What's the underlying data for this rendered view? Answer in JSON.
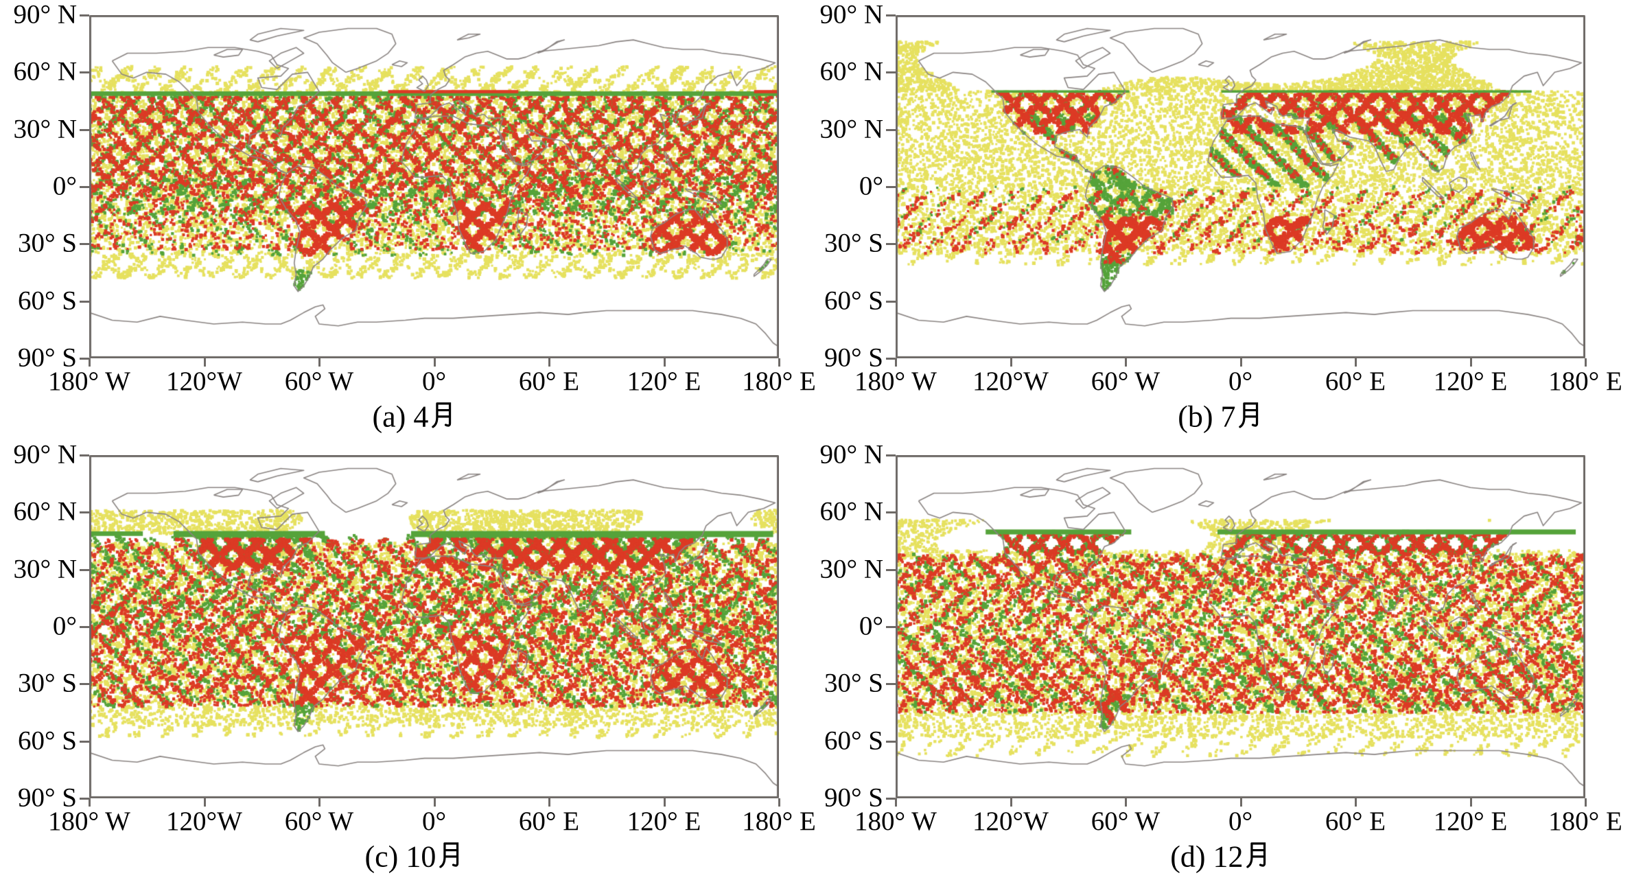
{
  "figure": {
    "background": "#ffffff",
    "palette": {
      "yellow": "#e6e15f",
      "green": "#55a33a",
      "red": "#dc3a25",
      "coastline": "#8a8482",
      "frame": "#6e6a67",
      "text": "#000000"
    }
  },
  "chart_data": [
    {
      "id": "a",
      "type": "scatter",
      "caption": "(a) 4月",
      "x_ticks": [
        "180° W",
        "120°W",
        "60° W",
        "0°",
        "60° E",
        "120° E",
        "180° E"
      ],
      "y_ticks": [
        "90° N",
        "60° N",
        "30° N",
        "0°",
        "30° S",
        "60° S",
        "90° S"
      ],
      "xlim": [
        -180,
        180
      ],
      "ylim": [
        -90,
        90
      ],
      "grid": false,
      "legend": "none",
      "series": [
        {
          "name": "yellow",
          "color": "#e6e15f",
          "bands": [
            {
              "lat": [
                50,
                63
              ],
              "style": "diag",
              "dir": 1,
              "d": 0.3
            },
            {
              "lat": [
                50,
                61
              ],
              "style": "diag",
              "dir": -1,
              "d": 0.12
            },
            {
              "lat": [
                -33,
                50
              ],
              "style": "speckle",
              "d": 0.5
            },
            {
              "lat": [
                -48,
                -33
              ],
              "style": "diag",
              "dir": 1,
              "d": 0.26
            },
            {
              "lat": [
                -48,
                -33
              ],
              "style": "diag",
              "dir": -1,
              "d": 0.14
            }
          ]
        },
        {
          "name": "green",
          "color": "#55a33a",
          "bands": [
            {
              "lat": [
                30,
                47.5
              ],
              "style": "cross",
              "d": 0.5
            },
            {
              "lat": [
                5,
                30
              ],
              "style": "cross",
              "d": 0.35
            },
            {
              "lat": [
                -15,
                5
              ],
              "style": "diag",
              "dir": 1,
              "d": 0.25
            },
            {
              "lat": [
                -15,
                5
              ],
              "style": "diag",
              "dir": -1,
              "d": 0.15
            },
            {
              "lat": [
                -36,
                -15
              ],
              "style": "diag",
              "dir": -1,
              "d": 0.12
            },
            {
              "lat": [
                -54,
                -44
              ],
              "lon": [
                -76,
                -60
              ],
              "style": "speckle",
              "d": 0.55,
              "mask": "land"
            },
            {
              "lat": [
                -47,
                -39
              ],
              "lon": [
                166,
                179
              ],
              "style": "speckle",
              "d": 0.4,
              "mask": "land"
            }
          ]
        },
        {
          "name": "red",
          "color": "#dc3a25",
          "bands": [
            {
              "lat": [
                25,
                47.5
              ],
              "style": "cross",
              "d": 0.48
            },
            {
              "lat": [
                -5,
                25
              ],
              "style": "cross",
              "d": 0.5
            },
            {
              "lat": [
                -33,
                -5
              ],
              "style": "cross",
              "d": 0.22
            },
            {
              "lat": [
                -36,
                -8
              ],
              "style": "cross",
              "d": 0.42,
              "mask": "land"
            }
          ]
        }
      ],
      "edge_bands": [
        {
          "color": "green",
          "lat": [
            47.6,
            50
          ],
          "lon": [
            -180,
            180
          ]
        },
        {
          "color": "red",
          "lat": [
            49,
            50.7
          ],
          "lon": [
            -24,
            44
          ]
        },
        {
          "color": "red",
          "lat": [
            49,
            50.7
          ],
          "lon": [
            167,
            180
          ]
        }
      ]
    },
    {
      "id": "b",
      "type": "scatter",
      "caption": "(b) 7月",
      "x_ticks": [
        "180° W",
        "120°W",
        "60° W",
        "0°",
        "60° E",
        "120° E",
        "180° E"
      ],
      "y_ticks": [
        "90° N",
        "60° N",
        "30° N",
        "0°",
        "30° S",
        "60° S",
        "90° S"
      ],
      "xlim": [
        -180,
        180
      ],
      "ylim": [
        -90,
        90
      ],
      "grid": false,
      "legend": "none",
      "series": [
        {
          "name": "yellow",
          "color": "#e6e15f",
          "bands": [
            {
              "lat": [
                50,
                76
              ],
              "style": "patch",
              "d": 0.5
            },
            {
              "lat": [
                -35,
                50
              ],
              "style": "speckle",
              "d": 0.52
            },
            {
              "lat": [
                -41,
                -35
              ],
              "style": "diag",
              "dir": 1,
              "d": 0.18
            }
          ]
        },
        {
          "name": "green",
          "color": "#55a33a",
          "bands": [
            {
              "lat": [
                38,
                50
              ],
              "lon": [
                -135,
                155
              ],
              "style": "cross",
              "d": 0.22,
              "mask": "land"
            },
            {
              "lat": [
                0,
                38
              ],
              "style": "diag",
              "dir": -1,
              "d": 0.2,
              "mask": "land"
            },
            {
              "lat": [
                -18,
                8
              ],
              "lon": [
                -82,
                -35
              ],
              "style": "cross",
              "d": 0.4,
              "mask": "land"
            },
            {
              "lat": [
                -12,
                6
              ],
              "lon": [
                95,
                155
              ],
              "style": "diag",
              "dir": -1,
              "d": 0.3,
              "mask": "land"
            },
            {
              "lat": [
                -56,
                -34
              ],
              "lon": [
                -78,
                -56
              ],
              "style": "speckle",
              "d": 0.6,
              "mask": "land"
            },
            {
              "lat": [
                -30,
                0
              ],
              "style": "diag",
              "dir": 1,
              "d": 0.06
            },
            {
              "lat": [
                -47,
                -39
              ],
              "lon": [
                166,
                179
              ],
              "style": "speckle",
              "d": 0.45,
              "mask": "land"
            }
          ]
        },
        {
          "name": "red",
          "color": "#dc3a25",
          "bands": [
            {
              "lat": [
                40,
                50
              ],
              "lon": [
                -135,
                155
              ],
              "style": "cross",
              "d": 0.6,
              "mask": "land"
            },
            {
              "lat": [
                28,
                40
              ],
              "style": "cross",
              "d": 0.35,
              "mask": "land"
            },
            {
              "lat": [
                5,
                28
              ],
              "style": "diag",
              "dir": -1,
              "d": 0.05,
              "mask": "land"
            },
            {
              "lat": [
                -33,
                -16
              ],
              "style": "cross",
              "d": 0.55,
              "mask": "land"
            },
            {
              "lat": [
                -40,
                -16
              ],
              "lon": [
                -76,
                -46
              ],
              "style": "cross",
              "d": 0.4,
              "mask": "land"
            },
            {
              "lat": [
                -35,
                -2
              ],
              "style": "diag",
              "dir": 1,
              "d": 0.14
            },
            {
              "lat": [
                -33,
                -18
              ],
              "style": "diag",
              "dir": -1,
              "d": 0.05
            }
          ]
        }
      ],
      "edge_bands": [
        {
          "color": "green",
          "lat": [
            49.3,
            50.6
          ],
          "lon": [
            -130,
            -58
          ]
        },
        {
          "color": "green",
          "lat": [
            49.3,
            50.6
          ],
          "lon": [
            -10,
            152
          ]
        }
      ]
    },
    {
      "id": "c",
      "type": "scatter",
      "caption": "(c) 10月",
      "x_ticks": [
        "180° W",
        "120°W",
        "60° W",
        "0°",
        "60° E",
        "120° E",
        "180° E"
      ],
      "y_ticks": [
        "90° N",
        "60° N",
        "30° N",
        "0°",
        "30° S",
        "60° S",
        "90° S"
      ],
      "xlim": [
        -180,
        180
      ],
      "ylim": [
        -90,
        90
      ],
      "grid": false,
      "legend": "none",
      "series": [
        {
          "name": "yellow",
          "color": "#e6e15f",
          "bands": [
            {
              "lat": [
                44,
                61
              ],
              "style": "patch",
              "d": 0.38
            },
            {
              "lat": [
                -52,
                44
              ],
              "style": "speckle",
              "d": 0.5
            },
            {
              "lat": [
                -58,
                -52
              ],
              "style": "diag",
              "dir": 1,
              "d": 0.2
            }
          ]
        },
        {
          "name": "green",
          "color": "#55a33a",
          "bands": [
            {
              "lat": [
                36,
                48
              ],
              "style": "cross",
              "d": 0.5,
              "mask": "land"
            },
            {
              "lat": [
                26,
                48
              ],
              "style": "diag",
              "dir": -1,
              "d": 0.26
            },
            {
              "lat": [
                -6,
                26
              ],
              "style": "diag",
              "dir": 1,
              "d": 0.26
            },
            {
              "lat": [
                -6,
                26
              ],
              "style": "diag",
              "dir": -1,
              "d": 0.12
            },
            {
              "lat": [
                -42,
                -6
              ],
              "style": "diag",
              "dir": -1,
              "d": 0.22
            },
            {
              "lat": [
                -55,
                -40
              ],
              "lon": [
                -76,
                -58
              ],
              "style": "speckle",
              "d": 0.6,
              "mask": "land"
            },
            {
              "lat": [
                -47,
                -39
              ],
              "lon": [
                166,
                179
              ],
              "style": "speckle",
              "d": 0.4,
              "mask": "land"
            }
          ]
        },
        {
          "name": "red",
          "color": "#dc3a25",
          "bands": [
            {
              "lat": [
                30,
                46
              ],
              "style": "cross",
              "d": 0.45,
              "mask": "land"
            },
            {
              "lat": [
                20,
                46
              ],
              "style": "cross",
              "d": 0.32
            },
            {
              "lat": [
                -8,
                20
              ],
              "style": "cross",
              "d": 0.4
            },
            {
              "lat": [
                -42,
                -8
              ],
              "style": "cross",
              "d": 0.4
            },
            {
              "lat": [
                -40,
                -5
              ],
              "style": "cross",
              "d": 0.2,
              "mask": "land"
            }
          ]
        }
      ],
      "edge_bands": [
        {
          "color": "green",
          "lat": [
            47.6,
            50
          ],
          "lon": [
            -180,
            -152
          ]
        },
        {
          "color": "green",
          "lat": [
            47,
            50.2
          ],
          "lon": [
            -136,
            -57
          ]
        },
        {
          "color": "green",
          "lat": [
            47,
            50.2
          ],
          "lon": [
            -12,
            177
          ]
        }
      ]
    },
    {
      "id": "d",
      "type": "scatter",
      "caption": "(d) 12月",
      "x_ticks": [
        "180° W",
        "120°W",
        "60° W",
        "0°",
        "60° E",
        "120° E",
        "180° E"
      ],
      "y_ticks": [
        "90° N",
        "60° N",
        "30° N",
        "0°",
        "30° S",
        "60° S",
        "90° S"
      ],
      "xlim": [
        -180,
        180
      ],
      "ylim": [
        -90,
        90
      ],
      "grid": false,
      "legend": "none",
      "series": [
        {
          "name": "yellow",
          "color": "#e6e15f",
          "bands": [
            {
              "lat": [
                40,
                56
              ],
              "style": "patch",
              "d": 0.32
            },
            {
              "lat": [
                -58,
                40
              ],
              "style": "speckle",
              "d": 0.5
            },
            {
              "lat": [
                -68,
                -58
              ],
              "style": "diag",
              "dir": 1,
              "d": 0.16
            }
          ]
        },
        {
          "name": "green",
          "color": "#55a33a",
          "bands": [
            {
              "lat": [
                38,
                50
              ],
              "lon": [
                -135,
                176
              ],
              "style": "cross",
              "d": 0.45,
              "mask": "land"
            },
            {
              "lat": [
                24,
                38
              ],
              "style": "diag",
              "dir": -1,
              "d": 0.22
            },
            {
              "lat": [
                0,
                24
              ],
              "style": "diag",
              "dir": 1,
              "d": 0.22
            },
            {
              "lat": [
                -45,
                0
              ],
              "style": "diag",
              "dir": -1,
              "d": 0.24
            },
            {
              "lat": [
                -56,
                -36
              ],
              "lon": [
                -78,
                -56
              ],
              "style": "speckle",
              "d": 0.55,
              "mask": "land"
            },
            {
              "lat": [
                -47,
                -39
              ],
              "lon": [
                166,
                179
              ],
              "style": "speckle",
              "d": 0.4,
              "mask": "land"
            }
          ]
        },
        {
          "name": "red",
          "color": "#dc3a25",
          "bands": [
            {
              "lat": [
                38,
                49
              ],
              "lon": [
                -135,
                176
              ],
              "style": "cross",
              "d": 0.35,
              "mask": "land"
            },
            {
              "lat": [
                15,
                38
              ],
              "style": "cross",
              "d": 0.45
            },
            {
              "lat": [
                -15,
                15
              ],
              "style": "cross",
              "d": 0.26
            },
            {
              "lat": [
                -45,
                -15
              ],
              "style": "cross",
              "d": 0.42
            },
            {
              "lat": [
                -52,
                -34
              ],
              "lon": [
                -76,
                -56
              ],
              "style": "cross",
              "d": 0.45,
              "mask": "land"
            }
          ]
        }
      ],
      "edge_bands": [
        {
          "color": "green",
          "lat": [
            48.4,
            51
          ],
          "lon": [
            -133,
            -57
          ]
        },
        {
          "color": "green",
          "lat": [
            48.4,
            51
          ],
          "lon": [
            -12,
            175
          ]
        }
      ]
    }
  ]
}
